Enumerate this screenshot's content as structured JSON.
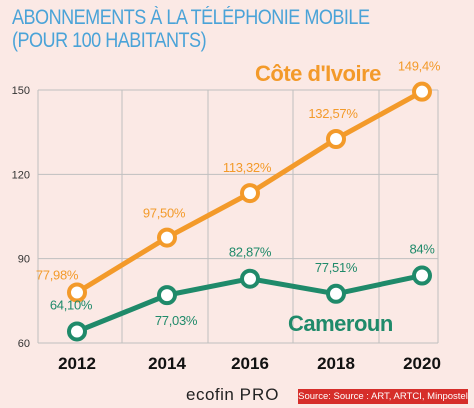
{
  "title_line1": "ABONNEMENTS À LA TÉLÉPHONIE MOBILE",
  "title_line2": "(POUR 100 HABITANTS)",
  "brand": {
    "main": "ecofin",
    "suffix": "PRO"
  },
  "source": "Source: Source : ART, ARTCI, Minpostel",
  "colors": {
    "cote_divoire": "#f39a2a",
    "cameroun": "#1f8a6a",
    "grid": "#bfbfbf",
    "title": "#4aa3d8",
    "background": "#fbe9e5",
    "source_bg": "#d62e2a"
  },
  "chart_data": {
    "type": "line",
    "title": "ABONNEMENTS À LA TÉLÉPHONIE MOBILE (POUR 100 HABITANTS)",
    "categories": [
      "2012",
      "2014",
      "2016",
      "2018",
      "2020"
    ],
    "yticks": [
      "60",
      "90",
      "120",
      "150"
    ],
    "ylim": [
      60,
      150
    ],
    "grid": true,
    "series": [
      {
        "name": "Côte d'Ivoire",
        "values": [
          77.98,
          97.5,
          113.32,
          132.57,
          149.4
        ],
        "labels": [
          "77,98%",
          "97,50%",
          "113,32%",
          "132,57%",
          "149,4%"
        ]
      },
      {
        "name": "Cameroun",
        "values": [
          64.1,
          77.03,
          82.87,
          77.51,
          84
        ],
        "labels": [
          "64,10%",
          "77,03%",
          "82,87%",
          "77,51%",
          "84%"
        ]
      }
    ]
  }
}
